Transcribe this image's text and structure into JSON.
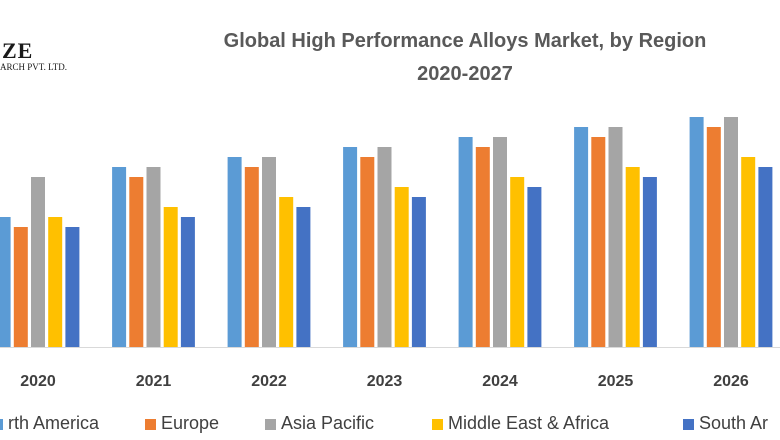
{
  "logo": {
    "text": "ZE",
    "subtext": "ARCH PVT. LTD."
  },
  "chart_data": {
    "type": "bar",
    "title": "Global High Performance Alloys Market, by Region",
    "subtitle": "2020-2027",
    "categories": [
      "2020",
      "2021",
      "2022",
      "2023",
      "2024",
      "2025",
      "2026"
    ],
    "ylim": [
      0,
      24
    ],
    "xlabel": "",
    "ylabel": "",
    "grid": false,
    "series": [
      {
        "name": "North America",
        "legend_label": "rth America",
        "color": "#5B9BD5",
        "values": [
          13,
          18,
          19,
          20,
          21,
          22,
          23
        ]
      },
      {
        "name": "Europe",
        "legend_label": "Europe",
        "color": "#ED7D31",
        "values": [
          12,
          17,
          18,
          19,
          20,
          21,
          22
        ]
      },
      {
        "name": "Asia Pacific",
        "legend_label": "Asia Pacific",
        "color": "#A5A5A5",
        "values": [
          17,
          18,
          19,
          20,
          21,
          22,
          23
        ]
      },
      {
        "name": "Middle East & Africa",
        "legend_label": "Middle East & Africa",
        "color": "#FFC000",
        "values": [
          13,
          14,
          15,
          16,
          17,
          18,
          19
        ]
      },
      {
        "name": "South America",
        "legend_label": "South Ar",
        "color": "#4472C4",
        "values": [
          12,
          13,
          14,
          15,
          16,
          17,
          18
        ]
      }
    ]
  }
}
